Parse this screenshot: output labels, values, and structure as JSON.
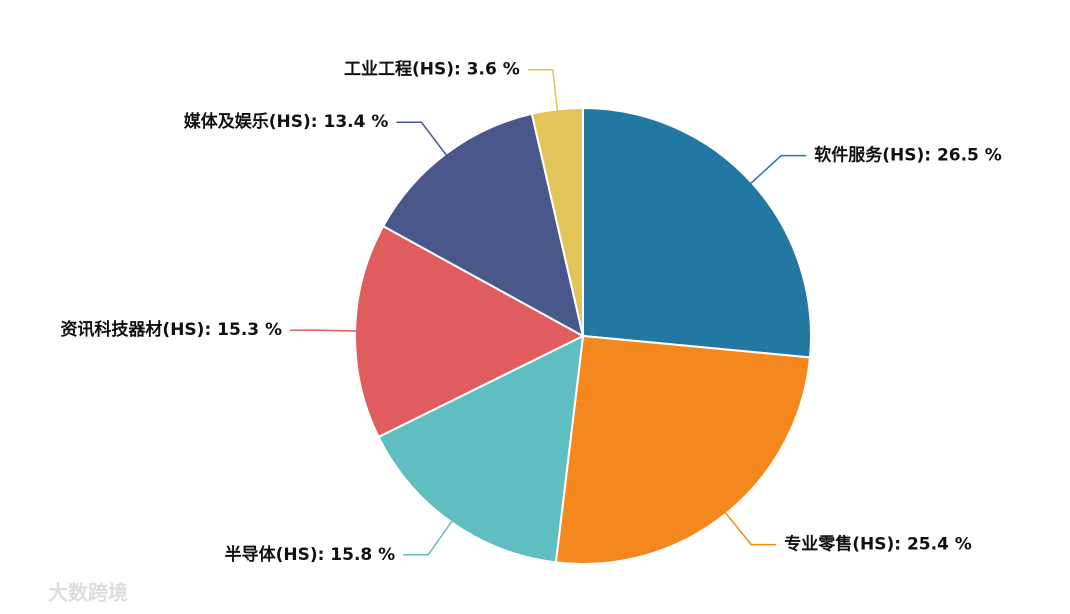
{
  "chart_data": {
    "type": "pie",
    "labels": [
      "软件服务(HS): 26.5 %",
      "专业零售(HS): 25.4 %",
      "半导体(HS): 15.8 %",
      "资讯科技器材(HS): 15.3 %",
      "媒体及娱乐(HS): 13.4 %",
      "工业工程(HS): 3.6 %"
    ],
    "values": [
      26.5,
      25.4,
      15.8,
      15.3,
      13.4,
      3.6
    ],
    "colors": [
      "#2278a3",
      "#f5871f",
      "#5fbec1",
      "#e05c5e",
      "#4a578a",
      "#e3c458"
    ],
    "watermark": "大数跨境"
  }
}
